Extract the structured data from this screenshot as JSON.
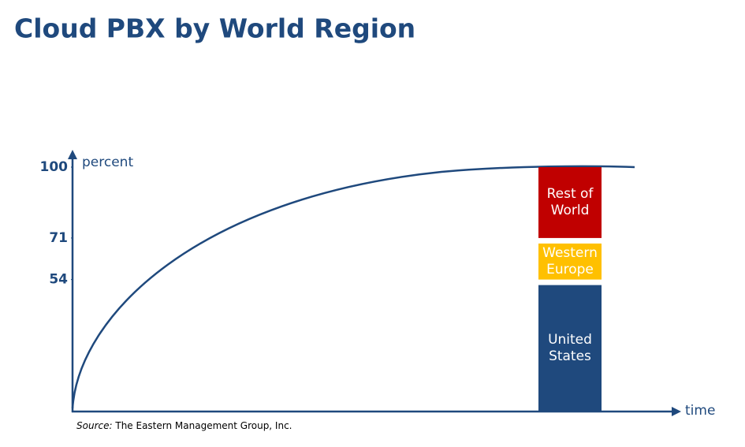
{
  "chart_data": {
    "type": "bar",
    "stacked": true,
    "title": "Cloud PBX by World Region",
    "y_label": "percent",
    "x_label": "time",
    "source_label": "Source:",
    "source": "The Eastern Management Group, Inc.",
    "categories": [
      null
    ],
    "series": [
      {
        "name": "United States",
        "color": "#1f497d",
        "text_color": "#ffffff",
        "values": [
          54
        ]
      },
      {
        "name": "Western Europe",
        "color": "#ffc000",
        "text_color": "#ffffff",
        "values": [
          17
        ]
      },
      {
        "name": "Rest of World",
        "color": "#c00000",
        "text_color": "#ffffff",
        "values": [
          29
        ]
      }
    ],
    "ylim": [
      0,
      100
    ],
    "yticks": [
      54,
      71,
      100
    ]
  }
}
